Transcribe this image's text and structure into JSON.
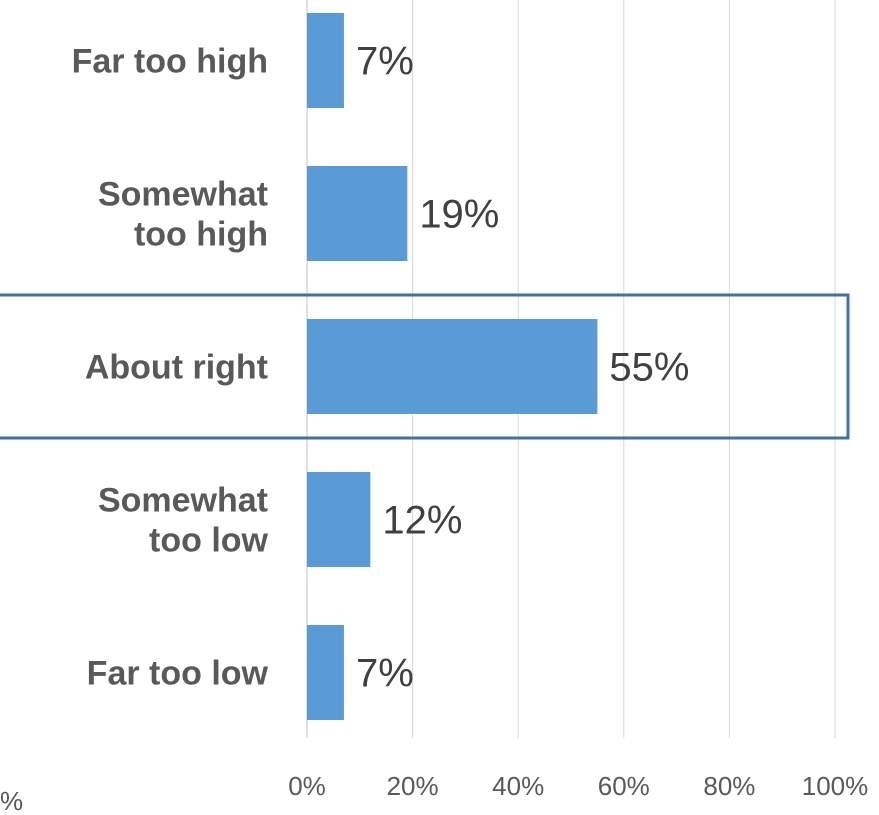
{
  "chart_data": {
    "type": "bar",
    "orientation": "horizontal",
    "categories": [
      [
        "Far too high"
      ],
      [
        "Somewhat",
        "too high"
      ],
      [
        "About right"
      ],
      [
        "Somewhat",
        "too low"
      ],
      [
        "Far too low"
      ]
    ],
    "values": [
      7,
      19,
      55,
      12,
      7
    ],
    "value_labels": [
      "7%",
      "19%",
      "55%",
      "12%",
      "7%"
    ],
    "xlim": [
      0,
      100
    ],
    "x_ticks": [
      0,
      20,
      40,
      60,
      80,
      100
    ],
    "x_tick_labels": [
      "0%",
      "20%",
      "40%",
      "60%",
      "80%",
      "100%"
    ],
    "grid": "vertical",
    "bar_color": "#5b9bd5",
    "highlighted_category": "About right",
    "highlight_color": "#41719c",
    "stray_fragment": "%"
  }
}
